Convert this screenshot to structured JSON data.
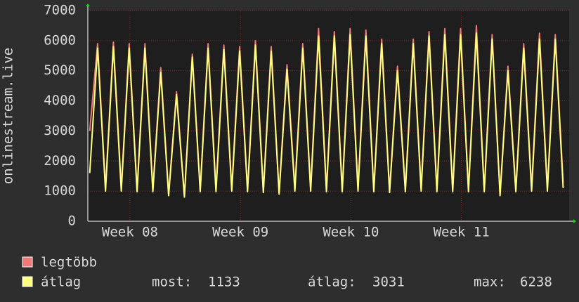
{
  "chart_data": {
    "type": "line",
    "y_label": "onlinestream.live",
    "x": [
      0,
      0.5,
      1,
      1.5,
      2,
      2.5,
      3,
      3.5,
      4,
      4.5,
      5,
      5.5,
      6,
      6.5,
      7,
      7.5,
      8,
      8.5,
      9,
      9.5,
      10,
      10.5,
      11,
      11.5,
      12,
      12.5,
      13,
      13.5,
      14,
      14.5,
      15,
      15.5,
      16,
      16.5,
      17,
      17.5,
      18,
      18.5,
      19,
      19.5,
      20,
      20.5,
      21,
      21.5,
      22,
      22.5,
      23,
      23.5,
      24,
      24.5,
      25,
      25.5,
      26,
      26.5,
      27,
      27.5,
      28,
      28.5,
      29,
      29.5,
      30
    ],
    "xlim": [
      -0.12,
      30.38
    ],
    "xticks": [
      {
        "value": 2.55,
        "label": "Week 08"
      },
      {
        "value": 9.55,
        "label": "Week 09"
      },
      {
        "value": 16.55,
        "label": "Week 10"
      },
      {
        "value": 23.55,
        "label": "Week 11"
      }
    ],
    "ylim": [
      0,
      7000
    ],
    "yticks": [
      0,
      1000,
      2000,
      3000,
      4000,
      5000,
      6000,
      7000
    ],
    "grid": true,
    "series": [
      {
        "name": "legtöbb",
        "color": "#f07878",
        "values": [
          3000,
          5900,
          1100,
          5950,
          1100,
          5900,
          1050,
          5900,
          1050,
          5100,
          900,
          4300,
          850,
          5550,
          1050,
          5900,
          1050,
          5850,
          1100,
          5800,
          1050,
          6000,
          1000,
          5800,
          950,
          5200,
          1100,
          5900,
          1100,
          6400,
          1050,
          6300,
          1050,
          6400,
          1100,
          6350,
          1050,
          6050,
          1000,
          5150,
          1050,
          6050,
          1100,
          6300,
          1050,
          6400,
          1050,
          6400,
          1050,
          6500,
          1050,
          6200,
          900,
          5150,
          1050,
          5900,
          1100,
          6250,
          1100,
          6200,
          1300
        ]
      },
      {
        "name": "átlag",
        "color": "#ffff80",
        "values": [
          1600,
          5750,
          1000,
          5800,
          1000,
          5750,
          980,
          5750,
          980,
          4950,
          850,
          4200,
          800,
          5450,
          980,
          5750,
          980,
          5700,
          1000,
          5650,
          980,
          5850,
          950,
          5650,
          900,
          5050,
          1000,
          5750,
          1000,
          6150,
          980,
          6150,
          980,
          6200,
          1000,
          6150,
          980,
          5900,
          950,
          5000,
          980,
          5900,
          1000,
          6150,
          980,
          6200,
          980,
          6200,
          980,
          6250,
          980,
          6050,
          850,
          5000,
          980,
          5750,
          1000,
          6050,
          1000,
          6050,
          1100
        ]
      }
    ],
    "stats": [
      {
        "label": "most:",
        "value": 1133
      },
      {
        "label": "átlag:",
        "value": 3031
      },
      {
        "label": "max:",
        "value": 6238
      }
    ]
  }
}
